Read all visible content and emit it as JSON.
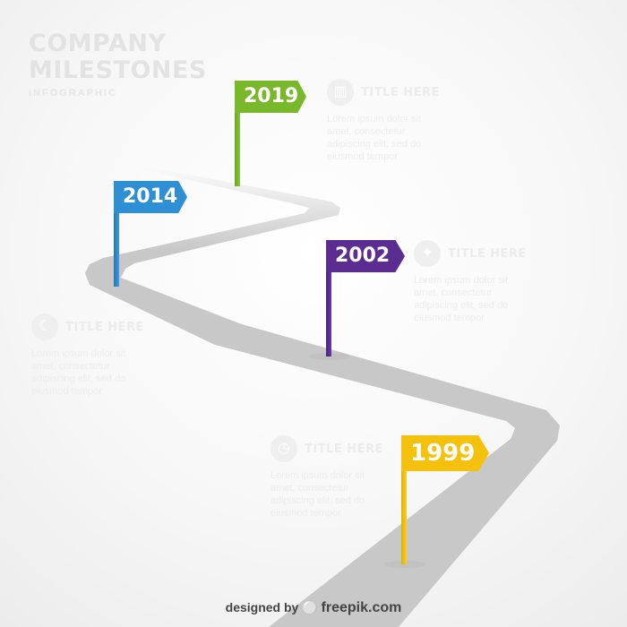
{
  "title": {
    "line1": "COMPANY",
    "line2": "MILESTONES",
    "subtitle": "INFOGRAPHIC"
  },
  "colors": {
    "road": "#c8c8c8",
    "green": "#78b82a",
    "blue": "#2e8fd4",
    "purple": "#5c2d91",
    "yellow": "#f4c20d"
  },
  "flags": [
    {
      "year": "2019",
      "color": "#78b82a"
    },
    {
      "year": "2014",
      "color": "#2e8fd4"
    },
    {
      "year": "2002",
      "color": "#5c2d91"
    },
    {
      "year": "1999",
      "color": "#f4c20d"
    }
  ],
  "info_blocks": [
    {
      "title": "TITLE HERE",
      "icon": "chart-icon",
      "body": "Lorem ipsum dolor sit amet, consectetur adipiscing elit, sed do eiusmod tempor"
    },
    {
      "title": "TITLE HERE",
      "icon": "lightbulb-icon",
      "body": "Lorem ipsum dolor sit amet, consectetur adipiscing elit, sed do eiusmod tempor"
    },
    {
      "title": "TITLE HERE",
      "icon": "moon-icon",
      "body": "Lorem ipsum dolor sit amet, consectetur adipiscing elit, sed do eiusmod tempor"
    },
    {
      "title": "TITLE HERE",
      "icon": "clock-icon",
      "body": "Lorem ipsum dolor sit amet, consectetur adipiscing elit, sed do eiusmod tempor"
    }
  ],
  "credit": {
    "prefix": "designed by",
    "brand": "freepik.com"
  }
}
